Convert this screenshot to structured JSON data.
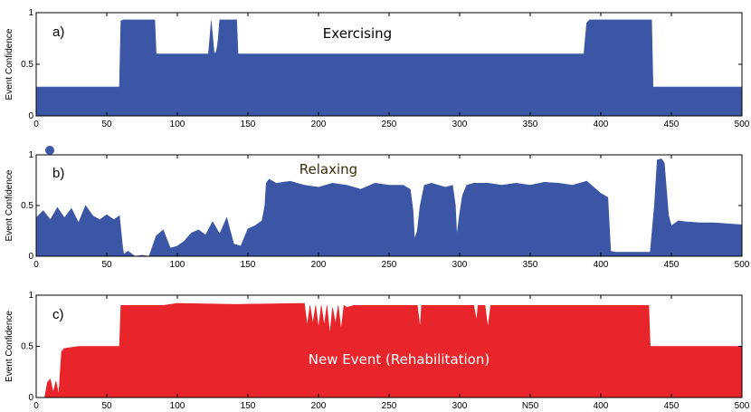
{
  "chart_data": [
    {
      "type": "area",
      "panel_label": "a)",
      "annotation": "Exercising",
      "annotation_color": "#000000",
      "ylabel": "Event Confidence",
      "xlim": [
        0,
        500
      ],
      "ylim": [
        0,
        1
      ],
      "xticks": [
        "0",
        "50",
        "100",
        "150",
        "200",
        "250",
        "300",
        "350",
        "400",
        "450",
        "500"
      ],
      "yticks": [
        "0",
        "0.5",
        "1"
      ],
      "color": "#3a56a5",
      "x": [
        0,
        58,
        59,
        60,
        62,
        84,
        85,
        86,
        122,
        123,
        124,
        126,
        127,
        128,
        129,
        130,
        136,
        142,
        143,
        144,
        145,
        388,
        390,
        392,
        393,
        436,
        437,
        438,
        500
      ],
      "y": [
        0.28,
        0.28,
        0.28,
        0.92,
        0.93,
        0.93,
        0.6,
        0.6,
        0.6,
        0.75,
        0.92,
        0.62,
        0.6,
        0.65,
        0.75,
        0.93,
        0.93,
        0.93,
        0.6,
        0.6,
        0.6,
        0.6,
        0.9,
        0.93,
        0.93,
        0.93,
        0.28,
        0.28,
        0.28
      ]
    },
    {
      "type": "area",
      "panel_label": "b)",
      "annotation": "Relaxing",
      "annotation_color": "#3b2e0b",
      "ylabel": "Event Confidence",
      "xlim": [
        0,
        500
      ],
      "ylim": [
        0,
        1
      ],
      "xticks": [
        "0",
        "50",
        "100",
        "150",
        "200",
        "250",
        "300",
        "350",
        "400",
        "450",
        "500"
      ],
      "yticks": [
        "0",
        "0.5",
        "1"
      ],
      "color": "#3a56a5",
      "x": [
        0,
        5,
        10,
        15,
        20,
        25,
        30,
        35,
        40,
        45,
        50,
        55,
        59,
        61,
        62,
        65,
        70,
        75,
        80,
        85,
        90,
        95,
        100,
        105,
        110,
        115,
        120,
        125,
        130,
        135,
        140,
        145,
        150,
        155,
        160,
        162,
        163,
        165,
        170,
        180,
        190,
        200,
        210,
        220,
        230,
        240,
        250,
        260,
        265,
        267,
        268,
        270,
        272,
        275,
        280,
        285,
        290,
        295,
        297,
        298,
        300,
        302,
        305,
        310,
        320,
        330,
        340,
        350,
        360,
        370,
        380,
        390,
        400,
        405,
        407,
        410,
        420,
        430,
        435,
        438,
        440,
        443,
        445,
        448,
        450,
        455,
        460,
        470,
        480,
        490,
        500
      ],
      "y": [
        0.38,
        0.45,
        0.36,
        0.48,
        0.38,
        0.47,
        0.33,
        0.5,
        0.4,
        0.36,
        0.41,
        0.36,
        0.4,
        0.12,
        0.02,
        0.05,
        0.0,
        0.01,
        0.0,
        0.2,
        0.26,
        0.08,
        0.1,
        0.15,
        0.23,
        0.26,
        0.21,
        0.34,
        0.22,
        0.38,
        0.12,
        0.1,
        0.27,
        0.3,
        0.35,
        0.5,
        0.72,
        0.76,
        0.72,
        0.74,
        0.7,
        0.68,
        0.72,
        0.7,
        0.66,
        0.72,
        0.7,
        0.7,
        0.66,
        0.45,
        0.17,
        0.25,
        0.5,
        0.7,
        0.72,
        0.7,
        0.68,
        0.7,
        0.5,
        0.2,
        0.42,
        0.6,
        0.7,
        0.72,
        0.72,
        0.7,
        0.72,
        0.7,
        0.73,
        0.72,
        0.7,
        0.74,
        0.62,
        0.58,
        0.05,
        0.04,
        0.04,
        0.04,
        0.04,
        0.5,
        0.95,
        0.96,
        0.92,
        0.4,
        0.3,
        0.35,
        0.34,
        0.33,
        0.33,
        0.32,
        0.31
      ]
    },
    {
      "type": "area",
      "panel_label": "c)",
      "annotation": "New Event (Rehabilitation)",
      "annotation_color": "#ffffff",
      "ylabel": "Event Confidence",
      "xlim": [
        0,
        500
      ],
      "ylim": [
        0,
        1
      ],
      "xticks": [
        "0",
        "50",
        "100",
        "150",
        "200",
        "250",
        "300",
        "N50",
        "400",
        "450",
        "500"
      ],
      "yticks": [
        "0",
        "0.5",
        "1"
      ],
      "color": "#e8252a",
      "x": [
        0,
        6,
        8,
        10,
        12,
        14,
        16,
        17,
        18,
        20,
        30,
        40,
        50,
        59,
        60,
        61,
        62,
        90,
        100,
        140,
        190,
        192,
        194,
        196,
        198,
        200,
        202,
        204,
        206,
        208,
        210,
        212,
        214,
        216,
        218,
        220,
        225,
        270,
        272,
        273,
        275,
        280,
        310,
        312,
        313,
        315,
        318,
        320,
        322,
        323,
        325,
        330,
        380,
        434,
        435,
        437,
        500
      ],
      "y": [
        0,
        0,
        0.15,
        0.18,
        0.05,
        0.16,
        0.03,
        0.25,
        0.45,
        0.48,
        0.5,
        0.5,
        0.5,
        0.5,
        0.9,
        0.9,
        0.9,
        0.9,
        0.92,
        0.91,
        0.92,
        0.7,
        0.9,
        0.72,
        0.9,
        0.68,
        0.9,
        0.7,
        0.9,
        0.62,
        0.88,
        0.72,
        0.9,
        0.66,
        0.9,
        0.88,
        0.9,
        0.9,
        0.68,
        0.9,
        0.9,
        0.9,
        0.9,
        0.75,
        0.9,
        0.9,
        0.9,
        0.68,
        0.9,
        0.9,
        0.9,
        0.9,
        0.9,
        0.9,
        0.5,
        0.5,
        0.5
      ]
    }
  ]
}
